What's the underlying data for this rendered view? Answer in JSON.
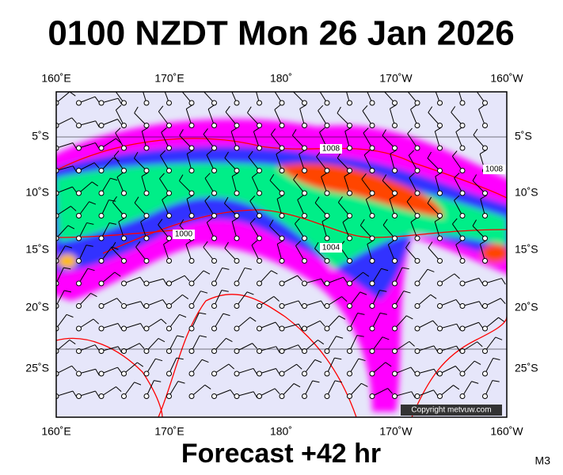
{
  "title": "0100 NZDT Mon 26 Jan 2026",
  "longitude_labels": [
    "160˚E",
    "170˚E",
    "180˚",
    "170˚W",
    "160˚W"
  ],
  "latitude_labels": [
    "5˚S",
    "10˚S",
    "15˚S",
    "20˚S",
    "25˚S"
  ],
  "isobar_labels": [
    "1008",
    "1008",
    "1000",
    "1004"
  ],
  "copyright": "Copyright metvuw.com",
  "forecast": "Forecast +42 hr",
  "model": "M3"
}
